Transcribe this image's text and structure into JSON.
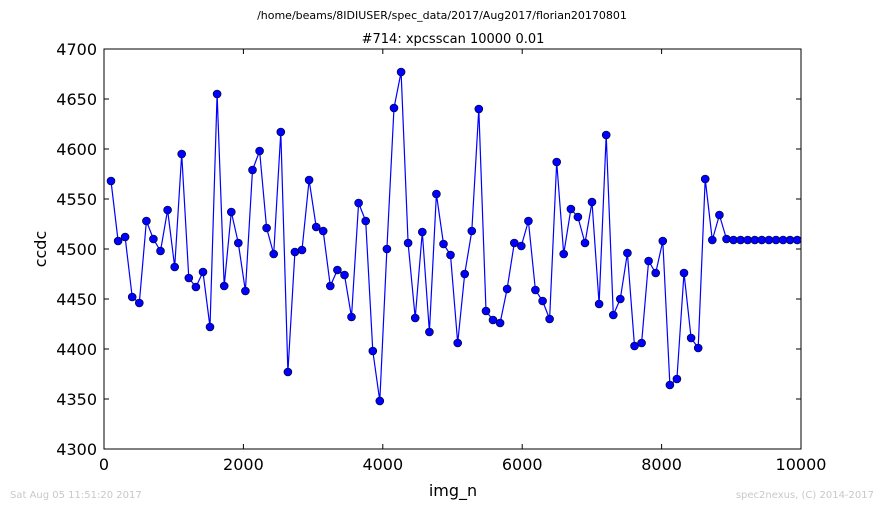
{
  "window": {
    "path_title": "/home/beams/8IDIUSER/spec_data/2017/Aug2017/florian20170801",
    "footer_left": "Sat Aug 05 11:51:20 2017",
    "footer_right": "spec2nexus, (C) 2014-2017"
  },
  "chart_data": {
    "type": "line",
    "title": "#714: xpcsscan 10000 0.01",
    "xlabel": "img_n",
    "ylabel": "ccdc",
    "xlim": [
      0,
      10000
    ],
    "ylim": [
      4300,
      4700
    ],
    "x_ticks": [
      "0",
      "2000",
      "4000",
      "6000",
      "8000",
      "10000"
    ],
    "y_ticks": [
      "4300",
      "4350",
      "4400",
      "4450",
      "4500",
      "4550",
      "4600",
      "4650",
      "4700"
    ],
    "grid": false,
    "marker": "circle",
    "line_color": "#0000ff",
    "marker_color": "#0000ff",
    "series": [
      {
        "x": [
          100,
          202,
          303,
          405,
          506,
          608,
          709,
          811,
          912,
          1014,
          1115,
          1217,
          1318,
          1420,
          1521,
          1623,
          1724,
          1826,
          1927,
          2029,
          2130,
          2232,
          2333,
          2435,
          2536,
          2638,
          2739,
          2841,
          2942,
          3044,
          3145,
          3247,
          3348,
          3450,
          3551,
          3653,
          3754,
          3856,
          3957,
          4059,
          4160,
          4262,
          4363,
          4465,
          4566,
          4668,
          4769,
          4871,
          4972,
          5074,
          5175,
          5277,
          5378,
          5480,
          5581,
          5683,
          5784,
          5886,
          5987,
          6089,
          6190,
          6292,
          6393,
          6495,
          6596,
          6698,
          6799,
          6901,
          7002,
          7104,
          7205,
          7307,
          7408,
          7510,
          7611,
          7713,
          7814,
          7916,
          8017,
          8119,
          8220,
          8322,
          8423,
          8525,
          8626,
          8728,
          8829,
          8931,
          9032,
          9134,
          9235,
          9337,
          9438,
          9540,
          9641,
          9743,
          9844,
          9946
        ],
        "y": [
          4568,
          4508,
          4512,
          4452,
          4446,
          4528,
          4510,
          4498,
          4539,
          4482,
          4595,
          4471,
          4462,
          4477,
          4422,
          4655,
          4463,
          4537,
          4506,
          4458,
          4579,
          4598,
          4521,
          4495,
          4617,
          4377,
          4497,
          4499,
          4569,
          4522,
          4518,
          4463,
          4479,
          4474,
          4432,
          4546,
          4528,
          4398,
          4348,
          4500,
          4641,
          4677,
          4506,
          4431,
          4517,
          4417,
          4555,
          4505,
          4494,
          4406,
          4475,
          4518,
          4640,
          4438,
          4429,
          4426,
          4460,
          4506,
          4503,
          4528,
          4459,
          4448,
          4430,
          4587,
          4495,
          4540,
          4532,
          4506,
          4547,
          4445,
          4614,
          4434,
          4450,
          4496,
          4403,
          4406,
          4488,
          4476,
          4508,
          4364,
          4370,
          4476,
          4411,
          4401,
          4570,
          4509,
          4534,
          4510,
          4509,
          4509,
          4509,
          4509,
          4509,
          4509,
          4509,
          4509,
          4509,
          4509
        ]
      }
    ]
  }
}
